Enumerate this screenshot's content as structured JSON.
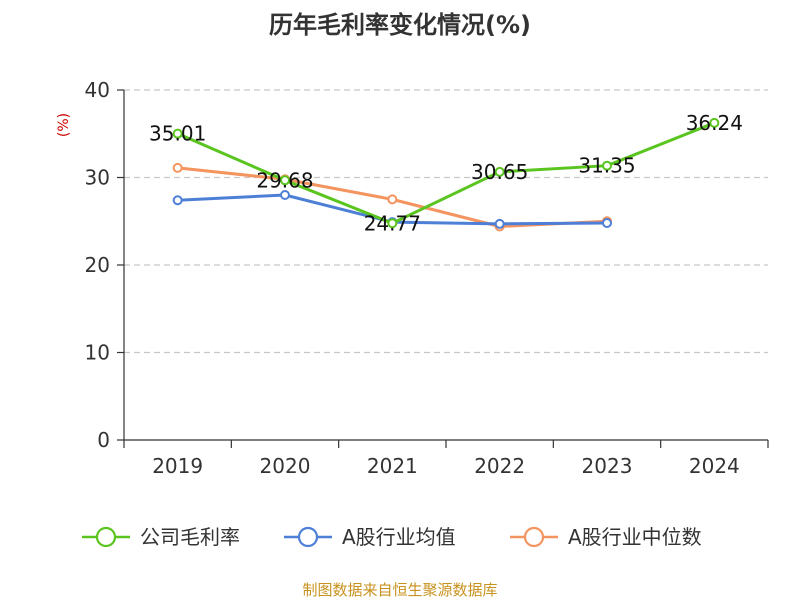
{
  "chart_data": {
    "type": "line",
    "title": "历年毛利率变化情况(%)",
    "ylabel": "(%)",
    "ylim": [
      0,
      40
    ],
    "yticks": [
      0,
      10,
      20,
      30,
      40
    ],
    "categories": [
      "2019",
      "2020",
      "2021",
      "2022",
      "2023",
      "2024"
    ],
    "grid": true,
    "legend_position": "bottom",
    "series": [
      {
        "name": "公司毛利率",
        "color": "#5bc520",
        "values": [
          35.01,
          29.68,
          24.77,
          30.65,
          31.35,
          36.24
        ],
        "labels": [
          "35.01",
          "29.68",
          "24.77",
          "30.65",
          "31.35",
          "36.24"
        ]
      },
      {
        "name": "A股行业均值",
        "color": "#4d7fd6",
        "values": [
          27.4,
          28.0,
          24.9,
          24.7,
          24.8,
          null
        ]
      },
      {
        "name": "A股行业中位数",
        "color": "#f4945e",
        "values": [
          31.1,
          29.8,
          27.5,
          24.4,
          25.0,
          null
        ]
      }
    ]
  },
  "source_text": "制图数据来自恒生聚源数据库"
}
